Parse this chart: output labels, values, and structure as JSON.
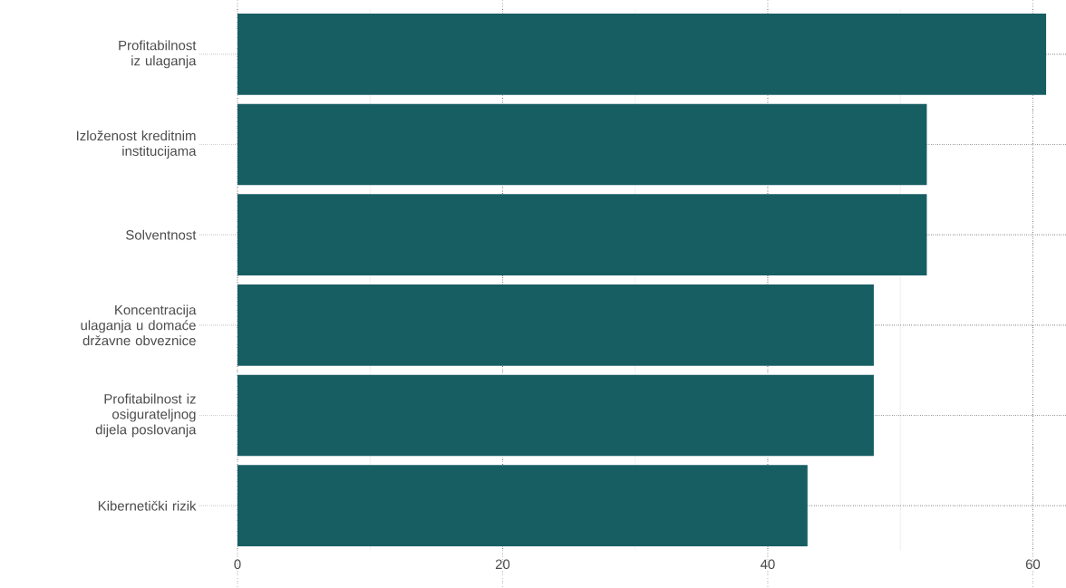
{
  "chart_data": {
    "type": "bar",
    "orientation": "horizontal",
    "categories": [
      "Profitabilnost iz ulaganja",
      "Izloženost kreditnim institucijama",
      "Solventnost",
      "Koncentracija ulaganja u domaće državne obveznice",
      "Profitabilnost iz osigurateljnog dijela poslovanja",
      "Kibernetički rizik"
    ],
    "values": [
      61,
      52,
      52,
      48,
      48,
      43
    ],
    "color": "#175e63",
    "xlim": [
      0,
      62.5
    ],
    "xticks": [
      0,
      {
        "value": 10,
        "label": null
      },
      20,
      {
        "value": 30,
        "label": null
      },
      40,
      {
        "value": 50,
        "label": null
      },
      60
    ],
    "grid": true
  }
}
